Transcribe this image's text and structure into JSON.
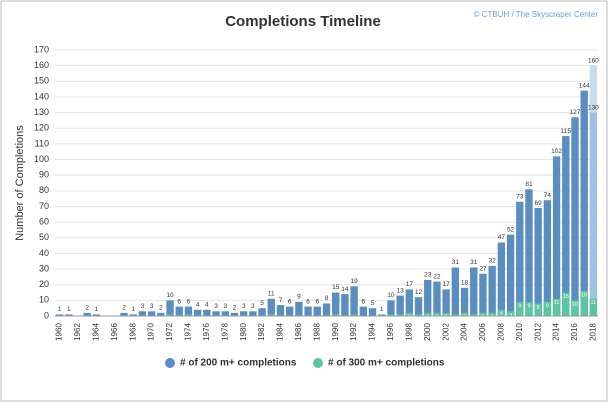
{
  "chart_data": {
    "type": "bar",
    "title": "Completions Timeline",
    "source": "© CTBUH / The Skyscraper Center",
    "y_label": "Number of Completions",
    "categories": [
      "1960",
      null,
      "1962",
      null,
      "1964",
      null,
      "1966",
      null,
      "1968",
      null,
      "1970",
      null,
      "1972",
      null,
      "1974",
      null,
      "1976",
      null,
      "1978",
      null,
      "1980",
      null,
      "1982",
      null,
      "1984",
      null,
      "1986",
      null,
      "1988",
      null,
      "1990",
      null,
      "1992",
      null,
      "1994",
      null,
      "1996",
      null,
      "1998",
      null,
      "2000",
      null,
      "2002",
      null,
      "2004",
      null,
      "2006",
      null,
      "2008",
      null,
      "2010",
      null,
      "2012",
      null,
      "2014",
      null,
      "2016",
      null,
      "2018"
    ],
    "series": [
      {
        "name": "# of 200 m+ completions",
        "color": "#5b8ec0",
        "values": [
          1,
          1,
          0,
          2,
          1,
          0,
          0,
          2,
          1,
          3,
          3,
          2,
          10,
          6,
          6,
          4,
          4,
          3,
          3,
          2,
          3,
          3,
          5,
          11,
          7,
          6,
          9,
          6,
          6,
          8,
          15,
          14,
          19,
          6,
          5,
          1,
          10,
          13,
          17,
          12,
          23,
          22,
          17,
          31,
          18,
          31,
          27,
          32,
          47,
          52,
          73,
          81,
          69,
          74,
          102,
          115,
          127,
          144,
          160
        ]
      },
      {
        "name": "# of 300 m+ completions",
        "color": "#5cc5a0",
        "values": [
          0,
          0,
          0,
          0,
          0,
          0,
          0,
          0,
          0,
          0,
          0,
          0,
          1,
          0,
          1,
          0,
          0,
          0,
          0,
          0,
          0,
          0,
          0,
          1,
          0,
          0,
          0,
          0,
          0,
          0,
          1,
          0,
          1,
          0,
          0,
          0,
          1,
          1,
          2,
          1,
          2,
          2,
          2,
          1,
          2,
          1,
          2,
          2,
          4,
          3,
          9,
          9,
          8,
          9,
          11,
          15,
          10,
          16,
          11
        ]
      }
    ],
    "last_completed": 130,
    "last_color": "#c6dcef",
    "ylim": [
      0,
      170
    ],
    "yticks": [
      0,
      10,
      20,
      30,
      40,
      50,
      60,
      70,
      80,
      90,
      100,
      110,
      120,
      130,
      140,
      150,
      160,
      170
    ],
    "grid": true,
    "legend": "bottom"
  }
}
